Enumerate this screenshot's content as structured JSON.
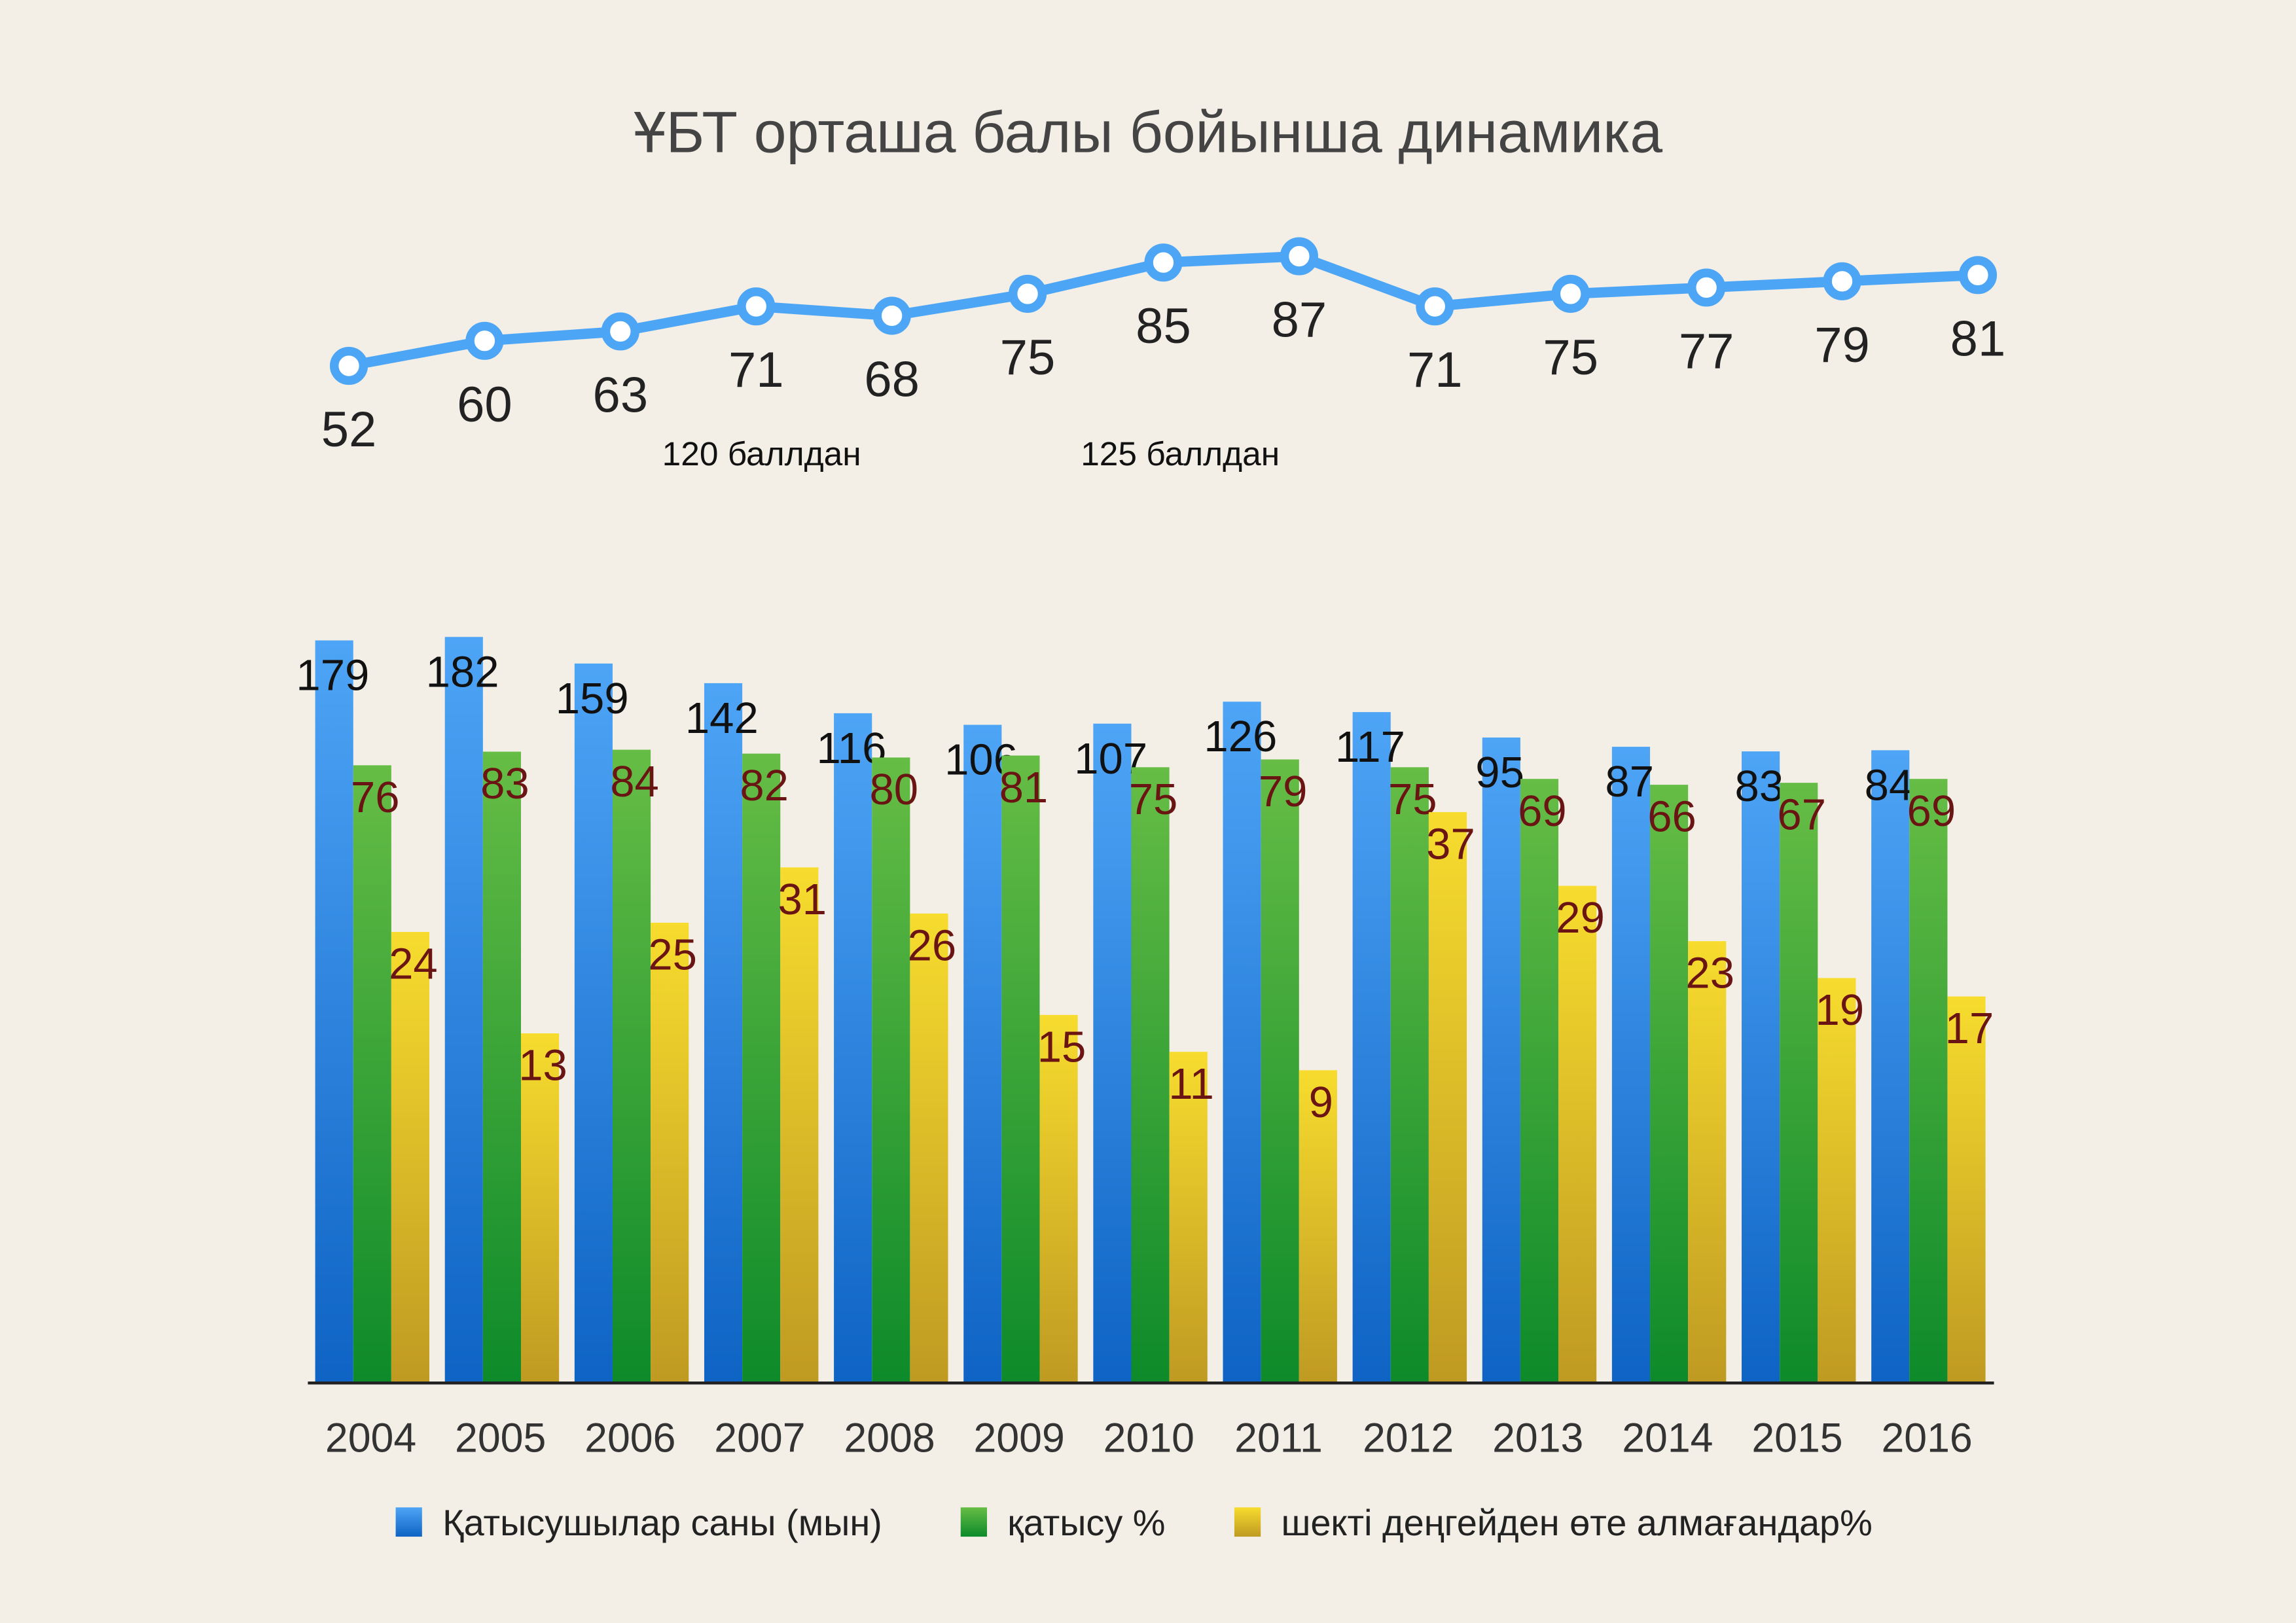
{
  "chart_data": [
    {
      "type": "line",
      "title": "ҰБТ орташа балы бойынша динамика",
      "x": [
        "2004",
        "2005",
        "2006",
        "2007",
        "2008",
        "2009",
        "2010",
        "2011",
        "2012",
        "2013",
        "2014",
        "2015",
        "2016"
      ],
      "values": [
        52,
        60,
        63,
        71,
        68,
        75,
        85,
        87,
        71,
        75,
        77,
        79,
        81
      ],
      "annotations": [
        "120 баллдан",
        "125 баллдан"
      ],
      "color": "#4da6f5",
      "grid": false
    },
    {
      "type": "bar",
      "categories": [
        "2004",
        "2005",
        "2006",
        "2007",
        "2008",
        "2009",
        "2010",
        "2011",
        "2012",
        "2013",
        "2014",
        "2015",
        "2016"
      ],
      "series": [
        {
          "name": "Қатысушылар саны (мын)",
          "values": [
            179,
            182,
            159,
            142,
            116,
            106,
            107,
            126,
            117,
            95,
            87,
            83,
            84
          ],
          "color": "#3b8fe8"
        },
        {
          "name": "қатысу %",
          "values": [
            76,
            83,
            84,
            82,
            80,
            81,
            75,
            79,
            75,
            69,
            66,
            67,
            69
          ],
          "color": "#3da53a"
        },
        {
          "name": "шекті деңгейден өте алмағандар%",
          "values": [
            24,
            13,
            25,
            31,
            26,
            15,
            11,
            9,
            37,
            29,
            23,
            19,
            17
          ],
          "color": "#e8c927"
        }
      ],
      "legend": "bottom",
      "grid": false
    }
  ]
}
